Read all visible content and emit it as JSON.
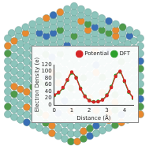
{
  "chart_data": {
    "type": "line",
    "x_label": "Distance (Å)",
    "y_label": "Electron Density (e)",
    "x": [
      0,
      0.25,
      0.5,
      0.75,
      1,
      1.25,
      1.5,
      1.75,
      2,
      2.25,
      2.5,
      2.75,
      3,
      3.25,
      3.5,
      3.75,
      4,
      4.25,
      4.5
    ],
    "series": [
      {
        "name": "Potential",
        "color": "#d62728",
        "marker": "circle",
        "line_style": "solid",
        "values": [
          30,
          38,
          52,
          75,
          98,
          80,
          48,
          25,
          13,
          9,
          10,
          15,
          28,
          52,
          85,
          100,
          72,
          40,
          22
        ]
      },
      {
        "name": "DFT",
        "color": "#2ca02c",
        "marker": "circle",
        "line_style": "solid",
        "values": [
          28,
          36,
          50,
          73,
          95,
          82,
          50,
          27,
          14,
          10,
          11,
          16,
          30,
          55,
          88,
          98,
          70,
          38,
          20
        ]
      }
    ],
    "xlim": [
      0,
      4.5
    ],
    "xticks": [
      0,
      1,
      2,
      3,
      4
    ],
    "ylim": [
      0,
      120
    ],
    "yticks": [
      0,
      20,
      40,
      60,
      80,
      100,
      120
    ],
    "grid": false,
    "legend": "top"
  }
}
